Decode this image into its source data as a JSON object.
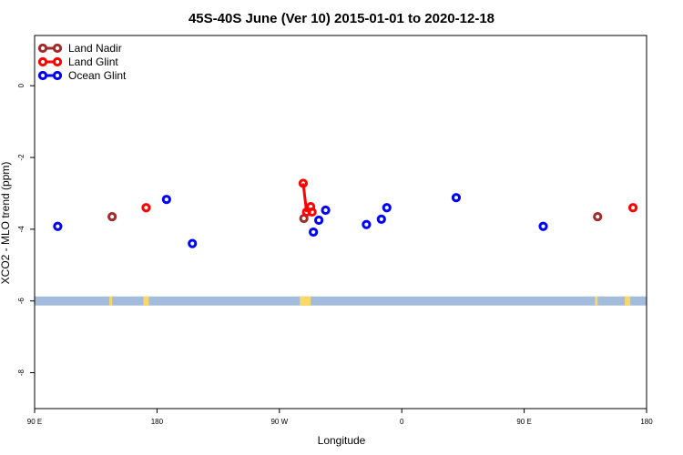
{
  "chart_data": {
    "type": "scatter",
    "title": "45S-40S June (Ver 10)   2015-01-01 to 2020-12-18",
    "xlabel": "Longitude",
    "ylabel": "XCO2 - MLO trend (ppm)",
    "x_ticks": [
      {
        "value": 90,
        "label": "90 E"
      },
      {
        "value": 180,
        "label": "180"
      },
      {
        "value": 270,
        "label": "90 W"
      },
      {
        "value": 360,
        "label": "0"
      },
      {
        "value": 450,
        "label": "90 E"
      },
      {
        "value": 540,
        "label": "180"
      }
    ],
    "y_ticks": [
      {
        "value": 0,
        "label": "0"
      },
      {
        "value": -2,
        "label": "-2"
      },
      {
        "value": -4,
        "label": "-4"
      },
      {
        "value": -6,
        "label": "-6"
      },
      {
        "value": -8,
        "label": "-8"
      }
    ],
    "xlim": [
      90,
      540
    ],
    "ylim": [
      -9.0,
      1.4
    ],
    "grid": false,
    "legend_position": "top-left",
    "series": [
      {
        "name": "Land Nadir",
        "color": "#a52a2a",
        "points": [
          {
            "x": 147,
            "y": -3.65
          },
          {
            "x": 288,
            "y": -3.7
          },
          {
            "x": 504,
            "y": -3.65
          }
        ]
      },
      {
        "name": "Land Glint",
        "color": "#ff0000",
        "points": [
          {
            "x": 172,
            "y": -3.4
          },
          {
            "x": 287.5,
            "y": -2.72
          },
          {
            "x": 290,
            "y": -3.52
          },
          {
            "x": 294,
            "y": -3.52
          },
          {
            "x": 293,
            "y": -3.37
          },
          {
            "x": 530,
            "y": -3.4
          }
        ],
        "line_segment": [
          {
            "x": 287.5,
            "y": -2.72
          },
          {
            "x": 290,
            "y": -3.52
          }
        ]
      },
      {
        "name": "Ocean Glint",
        "color": "#0000ff",
        "points": [
          {
            "x": 107,
            "y": -3.92
          },
          {
            "x": 187,
            "y": -3.17
          },
          {
            "x": 206,
            "y": -4.4
          },
          {
            "x": 295,
            "y": -4.08
          },
          {
            "x": 299,
            "y": -3.75
          },
          {
            "x": 304,
            "y": -3.47
          },
          {
            "x": 334,
            "y": -3.87
          },
          {
            "x": 345,
            "y": -3.72
          },
          {
            "x": 349,
            "y": -3.4
          },
          {
            "x": 400,
            "y": -3.12
          },
          {
            "x": 464,
            "y": -3.92
          }
        ]
      }
    ],
    "map_strip": {
      "y_center": -6.0,
      "ocean_color": "#a4bcdc",
      "land_color": "#f8d866",
      "land_x": [
        146,
        171,
        172,
        173,
        286,
        287,
        288,
        289,
        290,
        291,
        292,
        503,
        525,
        526,
        527
      ]
    }
  }
}
